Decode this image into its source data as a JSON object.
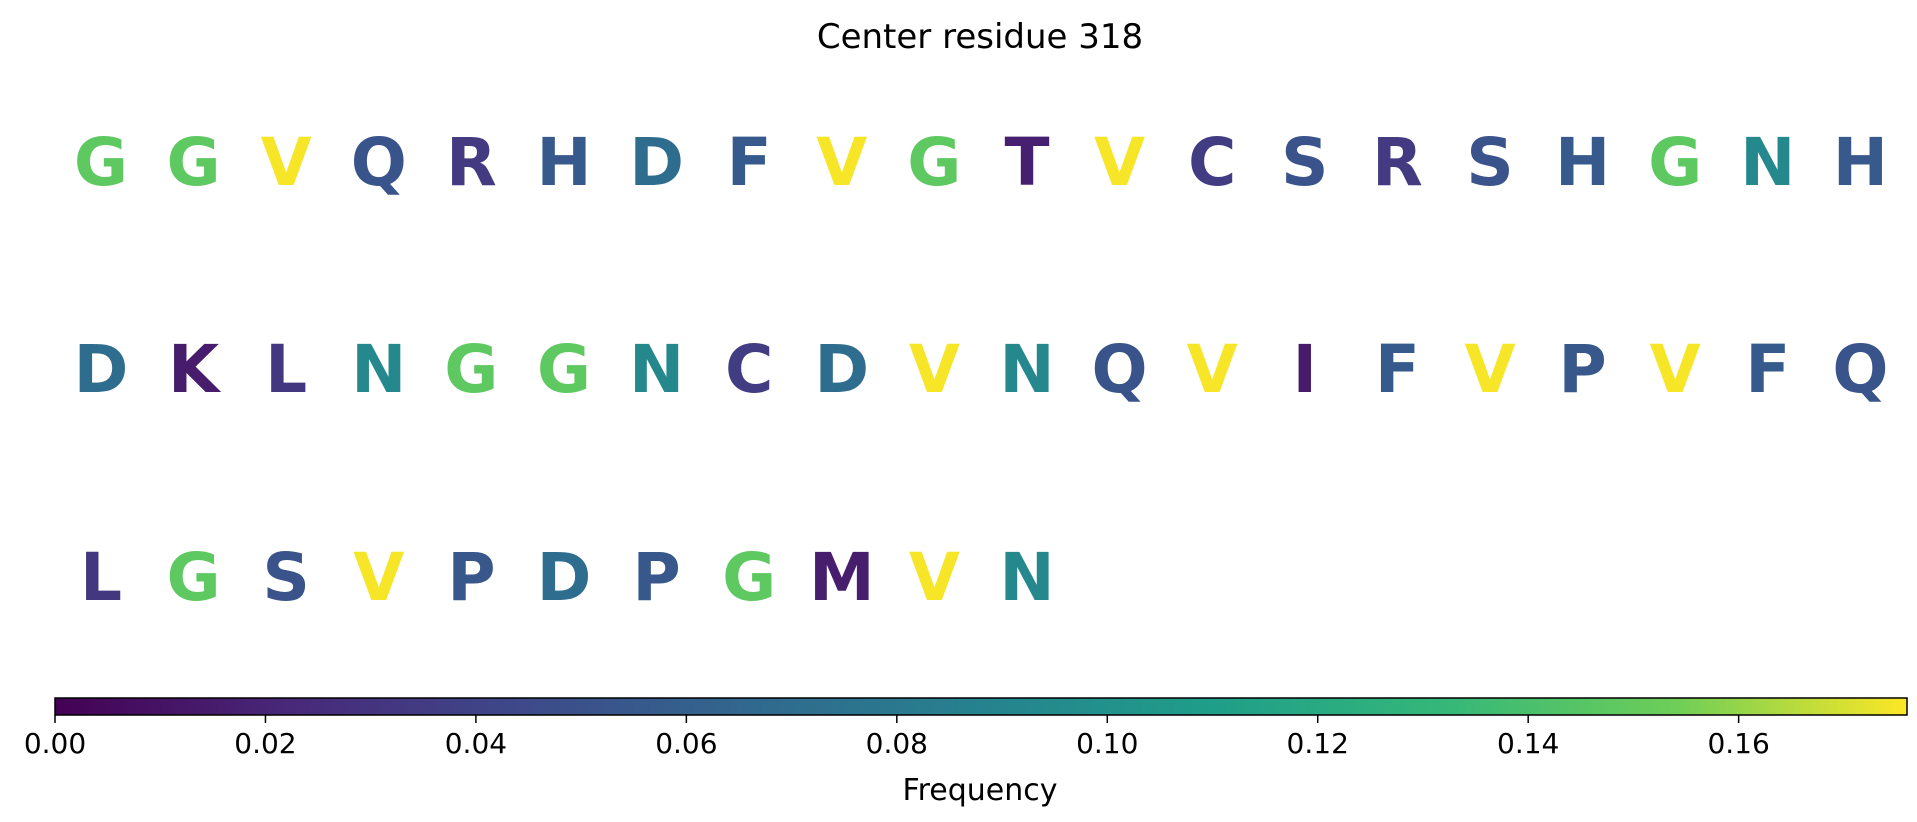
{
  "chart_data": {
    "type": "heatmap",
    "title": "Center residue 318",
    "colormap": "viridis",
    "residues": [
      {
        "letter": "G",
        "value": 0.148
      },
      {
        "letter": "G",
        "value": 0.148
      },
      {
        "letter": "V",
        "value": 0.175
      },
      {
        "letter": "Q",
        "value": 0.052
      },
      {
        "letter": "R",
        "value": 0.034
      },
      {
        "letter": "H",
        "value": 0.055
      },
      {
        "letter": "D",
        "value": 0.07
      },
      {
        "letter": "F",
        "value": 0.056
      },
      {
        "letter": "V",
        "value": 0.175
      },
      {
        "letter": "G",
        "value": 0.148
      },
      {
        "letter": "T",
        "value": 0.017
      },
      {
        "letter": "V",
        "value": 0.175
      },
      {
        "letter": "C",
        "value": 0.035
      },
      {
        "letter": "S",
        "value": 0.051
      },
      {
        "letter": "R",
        "value": 0.034
      },
      {
        "letter": "S",
        "value": 0.051
      },
      {
        "letter": "H",
        "value": 0.055
      },
      {
        "letter": "G",
        "value": 0.148
      },
      {
        "letter": "N",
        "value": 0.093
      },
      {
        "letter": "H",
        "value": 0.055
      },
      {
        "letter": "D",
        "value": 0.07
      },
      {
        "letter": "K",
        "value": 0.015
      },
      {
        "letter": "L",
        "value": 0.032
      },
      {
        "letter": "N",
        "value": 0.093
      },
      {
        "letter": "G",
        "value": 0.148
      },
      {
        "letter": "G",
        "value": 0.148
      },
      {
        "letter": "N",
        "value": 0.093
      },
      {
        "letter": "C",
        "value": 0.035
      },
      {
        "letter": "D",
        "value": 0.07
      },
      {
        "letter": "V",
        "value": 0.175
      },
      {
        "letter": "N",
        "value": 0.093
      },
      {
        "letter": "Q",
        "value": 0.052
      },
      {
        "letter": "V",
        "value": 0.175
      },
      {
        "letter": "I",
        "value": 0.014
      },
      {
        "letter": "F",
        "value": 0.056
      },
      {
        "letter": "V",
        "value": 0.175
      },
      {
        "letter": "P",
        "value": 0.054
      },
      {
        "letter": "V",
        "value": 0.175
      },
      {
        "letter": "F",
        "value": 0.056
      },
      {
        "letter": "Q",
        "value": 0.052
      },
      {
        "letter": "L",
        "value": 0.032
      },
      {
        "letter": "G",
        "value": 0.148
      },
      {
        "letter": "S",
        "value": 0.051
      },
      {
        "letter": "V",
        "value": 0.175
      },
      {
        "letter": "P",
        "value": 0.054
      },
      {
        "letter": "D",
        "value": 0.07
      },
      {
        "letter": "P",
        "value": 0.054
      },
      {
        "letter": "G",
        "value": 0.148
      },
      {
        "letter": "M",
        "value": 0.016
      },
      {
        "letter": "V",
        "value": 0.175
      },
      {
        "letter": "N",
        "value": 0.093
      }
    ],
    "colorbar": {
      "label": "Frequency",
      "range": [
        0,
        0.176
      ],
      "ticks": [
        0.0,
        0.02,
        0.04,
        0.06,
        0.08,
        0.1,
        0.12,
        0.14,
        0.16
      ],
      "tick_labels": [
        "0.00",
        "0.02",
        "0.04",
        "0.06",
        "0.08",
        "0.10",
        "0.12",
        "0.14",
        "0.16"
      ],
      "orientation": "horizontal",
      "placement": "bottom"
    }
  }
}
